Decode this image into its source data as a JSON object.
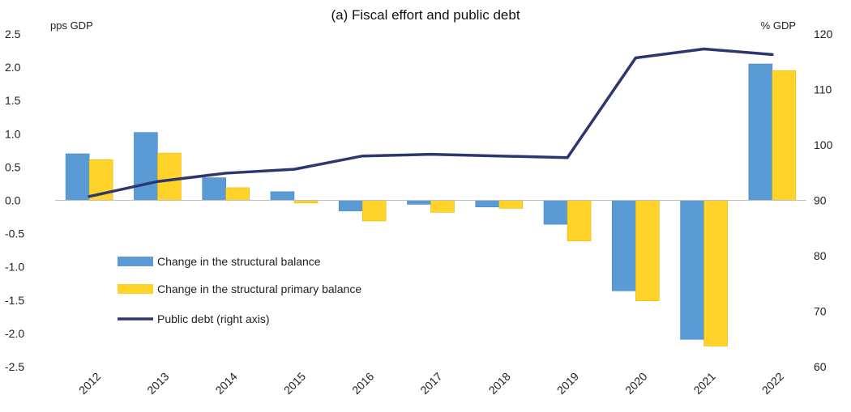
{
  "chart_data": {
    "type": "bar",
    "title": "(a) Fiscal effort and public debt",
    "left_axis_unit": "pps GDP",
    "right_axis_unit": "% GDP",
    "categories": [
      "2012",
      "2013",
      "2014",
      "2015",
      "2016",
      "2017",
      "2018",
      "2019",
      "2020",
      "2021",
      "2022"
    ],
    "series": [
      {
        "name": "Change in the structural balance",
        "kind": "bar",
        "axis": "left",
        "color": "#5B9BD5",
        "values": [
          0.7,
          1.02,
          0.34,
          0.13,
          -0.16,
          -0.06,
          -0.1,
          -0.36,
          -1.36,
          -2.09,
          2.05
        ]
      },
      {
        "name": "Change in the structural primary balance",
        "kind": "bar",
        "axis": "left",
        "color": "#FFD32A",
        "values": [
          0.61,
          0.71,
          0.19,
          -0.04,
          -0.31,
          -0.18,
          -0.12,
          -0.61,
          -1.51,
          -2.19,
          1.95
        ]
      },
      {
        "name": "Public debt (right axis)",
        "kind": "line",
        "axis": "right",
        "color": "#2E3670",
        "values": [
          90.7,
          93.4,
          94.9,
          95.6,
          98.0,
          98.3,
          98.0,
          97.7,
          115.7,
          117.3,
          116.3
        ]
      }
    ],
    "left_axis": {
      "min": -2.5,
      "max": 2.5,
      "step": 0.5,
      "tick_labels": [
        "-2.5",
        "-2.0",
        "-1.5",
        "-1.0",
        "-0.5",
        "0.0",
        "0.5",
        "1.0",
        "1.5",
        "2.0",
        "2.5"
      ]
    },
    "right_axis": {
      "min": 60,
      "max": 120,
      "step": 10,
      "tick_labels": [
        "60",
        "70",
        "80",
        "90",
        "100",
        "110",
        "120"
      ]
    },
    "legend_position": "left-center",
    "grid": false
  }
}
